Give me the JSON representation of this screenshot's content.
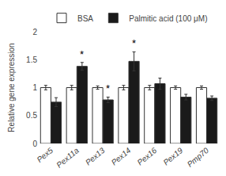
{
  "chart_data": {
    "type": "bar",
    "categories": [
      "Pex5",
      "Pex11a",
      "Pex13",
      "Pex14",
      "Pex16",
      "Pex19",
      "Pmp70"
    ],
    "series": [
      {
        "name": "BSA",
        "color": "#ffffff",
        "values": [
          1.0,
          1.0,
          1.0,
          1.0,
          1.0,
          1.0,
          1.0
        ],
        "errors": [
          0.04,
          0.04,
          0.03,
          0.04,
          0.04,
          0.03,
          0.03
        ]
      },
      {
        "name": "Palmitic acid (100 μM)",
        "color": "#1a1a1a",
        "values": [
          0.74,
          1.38,
          0.78,
          1.47,
          1.07,
          0.83,
          0.81
        ],
        "errors": [
          0.08,
          0.07,
          0.05,
          0.17,
          0.1,
          0.05,
          0.04
        ]
      }
    ],
    "annotations": [
      {
        "text": "*",
        "category": "Pex11a",
        "series": "Palmitic acid (100 μM)"
      },
      {
        "text": "*",
        "category": "Pex13",
        "series": "Palmitic acid (100 μM)"
      },
      {
        "text": "*",
        "category": "Pex14",
        "series": "Palmitic acid (100 μM)"
      }
    ],
    "ylabel": "Relative gene expression",
    "ylim": [
      0.0,
      2.0
    ],
    "yticks": [
      0.0,
      0.5,
      1.0,
      1.5,
      2.0
    ],
    "grid": false,
    "legend": "top"
  }
}
